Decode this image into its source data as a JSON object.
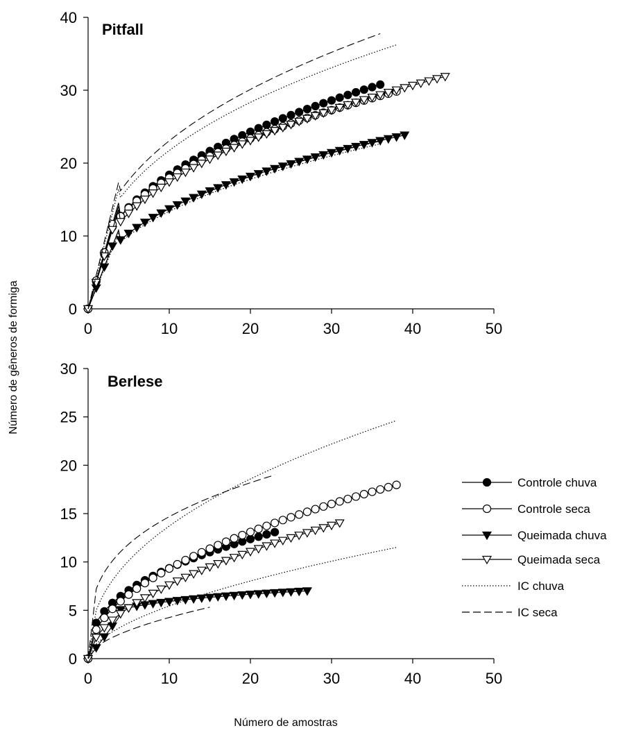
{
  "colors": {
    "ink": "#000000",
    "background": "#ffffff"
  },
  "chart_data": {
    "type": "line",
    "ylabel": "Número de gêneros de formiga",
    "xlabel": "Número de amostras",
    "legend": {
      "position": "right",
      "entries": [
        {
          "label": "Controle chuva",
          "marker": "filled-circle",
          "line": "solid"
        },
        {
          "label": "Controle seca",
          "marker": "open-circle",
          "line": "solid"
        },
        {
          "label": "Queimada chuva",
          "marker": "filled-triangle-down",
          "line": "solid"
        },
        {
          "label": "Queimada seca",
          "marker": "open-triangle-down",
          "line": "solid"
        },
        {
          "label": "IC chuva",
          "marker": "none",
          "line": "dotted"
        },
        {
          "label": "IC seca",
          "marker": "none",
          "line": "dashed"
        }
      ]
    },
    "panels": [
      {
        "title": "Pitfall",
        "xlim": [
          0,
          50
        ],
        "ylim": [
          0,
          40
        ],
        "xticks": [
          0,
          10,
          20,
          30,
          40,
          50
        ],
        "yticks": [
          0,
          10,
          20,
          30,
          40
        ],
        "series": [
          {
            "name": "Controle chuva",
            "marker": "filled-circle",
            "n_max": 36,
            "a": 7.3,
            "b": 0.4015,
            "anchor": 4,
            "y_anchor": 15.0
          },
          {
            "name": "Controle seca",
            "marker": "open-circle",
            "n_max": 38,
            "a": 7.5,
            "b": 0.3795,
            "anchor": 4,
            "y_anchor": 15.5
          },
          {
            "name": "Queimada chuva",
            "marker": "filled-triangle-down",
            "n_max": 39,
            "a": 5.4,
            "b": 0.4054,
            "anchor": 4,
            "y_anchor": 11.5
          },
          {
            "name": "Queimada seca",
            "marker": "open-triangle-down",
            "n_max": 44,
            "a": 6.8,
            "b": 0.4083,
            "anchor": 4,
            "y_anchor": 14.5
          },
          {
            "name": "IC chuva upper",
            "line": "dotted",
            "n_max": 38,
            "a": 9.0,
            "b": 0.3828,
            "anchor": 4,
            "y_anchor": 17.5
          },
          {
            "name": "IC seca upper",
            "line": "dashed",
            "n_max": 36,
            "a": 9.5,
            "b": 0.3851,
            "anchor": 4,
            "y_anchor": 18.5
          },
          {
            "name": "IC chuva lower",
            "line": "dotted",
            "n_max": 36,
            "a": 5.2,
            "b": 0.4105,
            "anchor": 4,
            "y_anchor": 11.0
          },
          {
            "name": "IC seca lower",
            "line": "dashed",
            "n_max": 36,
            "a": 5.4,
            "b": 0.4046,
            "anchor": 4,
            "y_anchor": 11.5
          }
        ]
      },
      {
        "title": "Berlese",
        "xlim": [
          0,
          50
        ],
        "ylim": [
          0,
          30
        ],
        "xticks": [
          0,
          10,
          20,
          30,
          40,
          50
        ],
        "yticks": [
          0,
          5,
          10,
          15,
          20,
          25,
          30
        ],
        "series": [
          {
            "name": "Controle chuva",
            "marker": "filled-circle",
            "n_max": 23,
            "a": 3.7,
            "b": 0.4028,
            "anchor": 1,
            "y_anchor": 3.7
          },
          {
            "name": "Controle seca",
            "marker": "open-circle",
            "n_max": 38,
            "a": 3.0,
            "b": 0.4921,
            "anchor": 1,
            "y_anchor": 3.0
          },
          {
            "name": "Queimada chuva",
            "marker": "filled-triangle-down",
            "n_max": 27,
            "a": 4.0,
            "b": 0.17,
            "anchor": 4,
            "y_anchor": 4.5
          },
          {
            "name": "Queimada seca",
            "marker": "open-triangle-down",
            "n_max": 31,
            "a": 2.2,
            "b": 0.5396,
            "anchor": 1,
            "y_anchor": 2.2
          },
          {
            "name": "IC chuva upper",
            "line": "dotted",
            "n_max": 38,
            "a": 5.0,
            "b": 0.4382,
            "anchor": 1,
            "y_anchor": 5.0
          },
          {
            "name": "IC seca upper",
            "line": "dashed",
            "n_max": 23,
            "a": 7.2,
            "b": 0.3094,
            "anchor": 1,
            "y_anchor": 7.2
          },
          {
            "name": "IC chuva lower",
            "line": "dotted",
            "n_max": 38,
            "a": 1.5,
            "b": 0.56,
            "anchor": 1,
            "y_anchor": 1.5
          },
          {
            "name": "IC seca lower",
            "line": "dashed",
            "n_max": 15,
            "a": 1.2,
            "b": 0.55,
            "anchor": 1,
            "y_anchor": 1.2
          }
        ]
      }
    ]
  }
}
